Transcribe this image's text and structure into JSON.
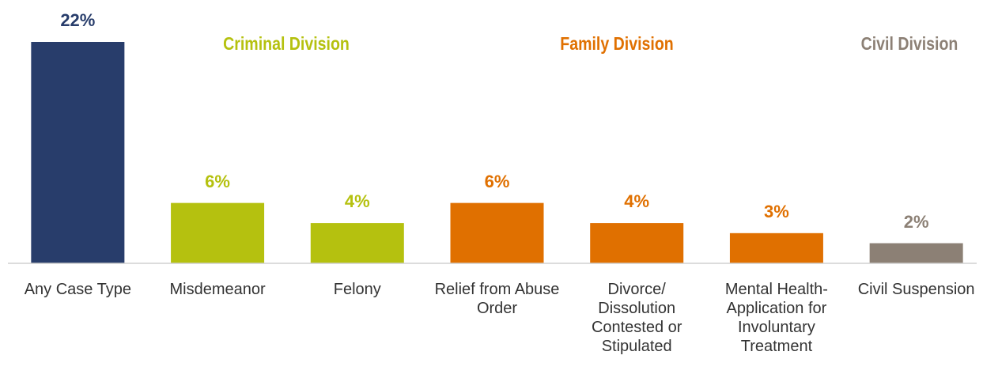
{
  "chart_data": {
    "type": "bar",
    "categories": [
      "Any Case Type",
      "Misdemeanor",
      "Felony",
      "Relief from Abuse Order",
      "Divorce/ Dissolution Contested or Stipulated",
      "Mental Health-Application for Involuntary Treatment",
      "Civil Suspension"
    ],
    "values": [
      22,
      6,
      4,
      6,
      4,
      3,
      2
    ],
    "value_labels": [
      "22%",
      "6%",
      "4%",
      "6%",
      "4%",
      "3%",
      "2%"
    ],
    "colors": [
      "#283d6b",
      "#b5c10f",
      "#b5c10f",
      "#e07000",
      "#e07000",
      "#e07000",
      "#8c8075"
    ],
    "ylim": [
      0,
      22
    ],
    "annotations": [
      {
        "text": "Criminal Division",
        "color": "#b5c10f"
      },
      {
        "text": "Family Division",
        "color": "#e07000"
      },
      {
        "text": "Civil Division",
        "color": "#8c8075"
      }
    ]
  }
}
